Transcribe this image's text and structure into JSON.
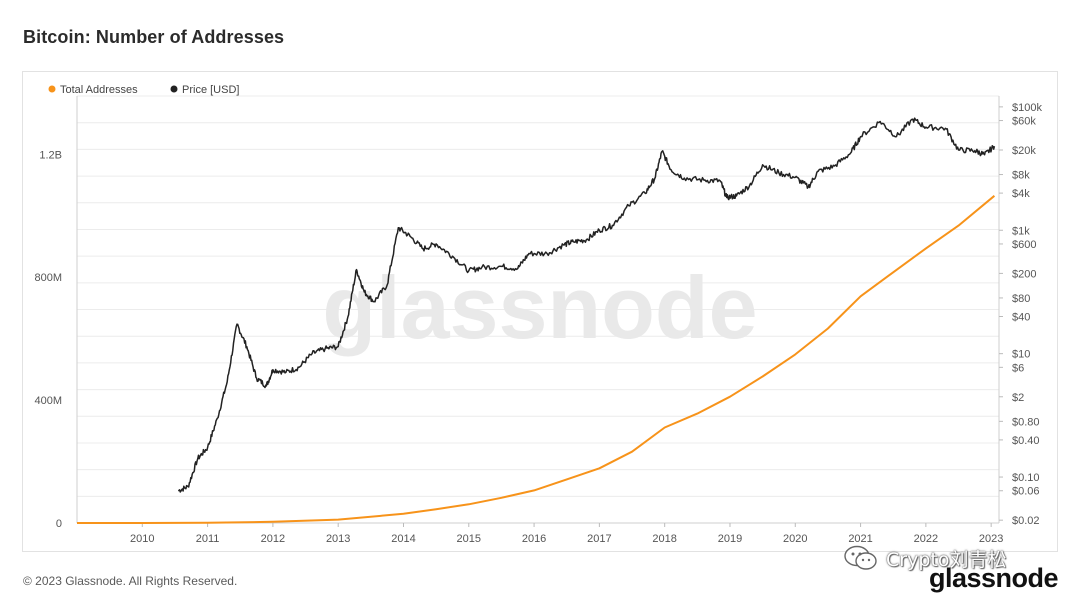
{
  "page": {
    "title": "Bitcoin: Number of Addresses",
    "copyright": "© 2023 Glassnode. All Rights Reserved.",
    "brand_logo": "glassnode",
    "watermark_text": "glassnode",
    "social_badge": "Crypto刘青松"
  },
  "colors": {
    "total_addresses": "#f7931a",
    "price": "#222222",
    "grid": "#ececec",
    "axis_text": "#555555"
  },
  "chart_data": {
    "type": "line",
    "title": "Bitcoin: Number of Addresses",
    "legend_position": "top-left",
    "grid": true,
    "series": [
      {
        "name": "Total Addresses",
        "axis": "left",
        "color": "#f7931a",
        "points": [
          [
            2009.0,
            0
          ],
          [
            2010.0,
            0
          ],
          [
            2011.0,
            0.5
          ],
          [
            2012.0,
            4
          ],
          [
            2013.0,
            11
          ],
          [
            2014.0,
            30
          ],
          [
            2014.5,
            45
          ],
          [
            2015.0,
            61
          ],
          [
            2015.5,
            82
          ],
          [
            2016.0,
            106
          ],
          [
            2016.5,
            142
          ],
          [
            2017.0,
            178
          ],
          [
            2017.5,
            232
          ],
          [
            2018.0,
            311
          ],
          [
            2018.5,
            356
          ],
          [
            2019.0,
            411
          ],
          [
            2019.5,
            477
          ],
          [
            2020.0,
            549
          ],
          [
            2020.5,
            633
          ],
          [
            2021.0,
            738
          ],
          [
            2021.5,
            816
          ],
          [
            2022.0,
            894
          ],
          [
            2022.5,
            968
          ],
          [
            2023.05,
            1065
          ]
        ]
      },
      {
        "name": "Price [USD]",
        "axis": "right",
        "scale": "log",
        "color": "#222222",
        "points": [
          [
            2010.55,
            0.06
          ],
          [
            2010.7,
            0.07
          ],
          [
            2010.85,
            0.2
          ],
          [
            2011.0,
            0.3
          ],
          [
            2011.15,
            0.9
          ],
          [
            2011.3,
            3.5
          ],
          [
            2011.45,
            30
          ],
          [
            2011.6,
            13
          ],
          [
            2011.75,
            4
          ],
          [
            2011.9,
            3
          ],
          [
            2012.0,
            5.5
          ],
          [
            2012.2,
            5
          ],
          [
            2012.4,
            6
          ],
          [
            2012.6,
            10
          ],
          [
            2012.8,
            12
          ],
          [
            2013.0,
            13
          ],
          [
            2013.15,
            40
          ],
          [
            2013.28,
            230
          ],
          [
            2013.4,
            100
          ],
          [
            2013.55,
            70
          ],
          [
            2013.75,
            130
          ],
          [
            2013.92,
            1100
          ],
          [
            2014.1,
            800
          ],
          [
            2014.3,
            500
          ],
          [
            2014.5,
            600
          ],
          [
            2014.75,
            380
          ],
          [
            2015.0,
            220
          ],
          [
            2015.2,
            250
          ],
          [
            2015.5,
            260
          ],
          [
            2015.75,
            240
          ],
          [
            2015.92,
            420
          ],
          [
            2016.2,
            420
          ],
          [
            2016.45,
            580
          ],
          [
            2016.6,
            650
          ],
          [
            2016.8,
            700
          ],
          [
            2017.0,
            1000
          ],
          [
            2017.2,
            1200
          ],
          [
            2017.45,
            2500
          ],
          [
            2017.7,
            4000
          ],
          [
            2017.85,
            7000
          ],
          [
            2017.96,
            19000
          ],
          [
            2018.1,
            9500
          ],
          [
            2018.3,
            7000
          ],
          [
            2018.6,
            6500
          ],
          [
            2018.85,
            6300
          ],
          [
            2018.95,
            3400
          ],
          [
            2019.1,
            3600
          ],
          [
            2019.3,
            5300
          ],
          [
            2019.5,
            11500
          ],
          [
            2019.75,
            8500
          ],
          [
            2020.0,
            7200
          ],
          [
            2020.2,
            5000
          ],
          [
            2020.35,
            9000
          ],
          [
            2020.6,
            11000
          ],
          [
            2020.85,
            18000
          ],
          [
            2021.0,
            33000
          ],
          [
            2021.3,
            58000
          ],
          [
            2021.55,
            33000
          ],
          [
            2021.8,
            63000
          ],
          [
            2022.0,
            47000
          ],
          [
            2022.3,
            45000
          ],
          [
            2022.5,
            20000
          ],
          [
            2022.75,
            19500
          ],
          [
            2022.9,
            16800
          ],
          [
            2023.05,
            23000
          ]
        ]
      }
    ],
    "x_ticks": [
      "2010",
      "2011",
      "2012",
      "2013",
      "2014",
      "2015",
      "2016",
      "2017",
      "2018",
      "2019",
      "2020",
      "2021",
      "2022",
      "2023"
    ],
    "xlim": [
      2009.0,
      2023.12
    ],
    "y_left_ticks": [
      {
        "value": 0,
        "label": "0"
      },
      {
        "value": 400,
        "label": "400M"
      },
      {
        "value": 800,
        "label": "800M"
      },
      {
        "value": 1200,
        "label": "1.2B"
      }
    ],
    "y_left_lim": [
      0,
      1390
    ],
    "y_right_ticks": [
      {
        "value": 100000,
        "label": "$100k"
      },
      {
        "value": 60000,
        "label": "$60k"
      },
      {
        "value": 20000,
        "label": "$20k"
      },
      {
        "value": 8000,
        "label": "$8k"
      },
      {
        "value": 4000,
        "label": "$4k"
      },
      {
        "value": 1000,
        "label": "$1k"
      },
      {
        "value": 600,
        "label": "$600"
      },
      {
        "value": 200,
        "label": "$200"
      },
      {
        "value": 80,
        "label": "$80"
      },
      {
        "value": 40,
        "label": "$40"
      },
      {
        "value": 10,
        "label": "$10"
      },
      {
        "value": 6,
        "label": "$6"
      },
      {
        "value": 2,
        "label": "$2"
      },
      {
        "value": 0.8,
        "label": "$0.80"
      },
      {
        "value": 0.4,
        "label": "$0.40"
      },
      {
        "value": 0.1,
        "label": "$0.10"
      },
      {
        "value": 0.06,
        "label": "$0.06"
      },
      {
        "value": 0.02,
        "label": "$0.02"
      }
    ],
    "y_right_lim": [
      0.018,
      150000
    ]
  }
}
